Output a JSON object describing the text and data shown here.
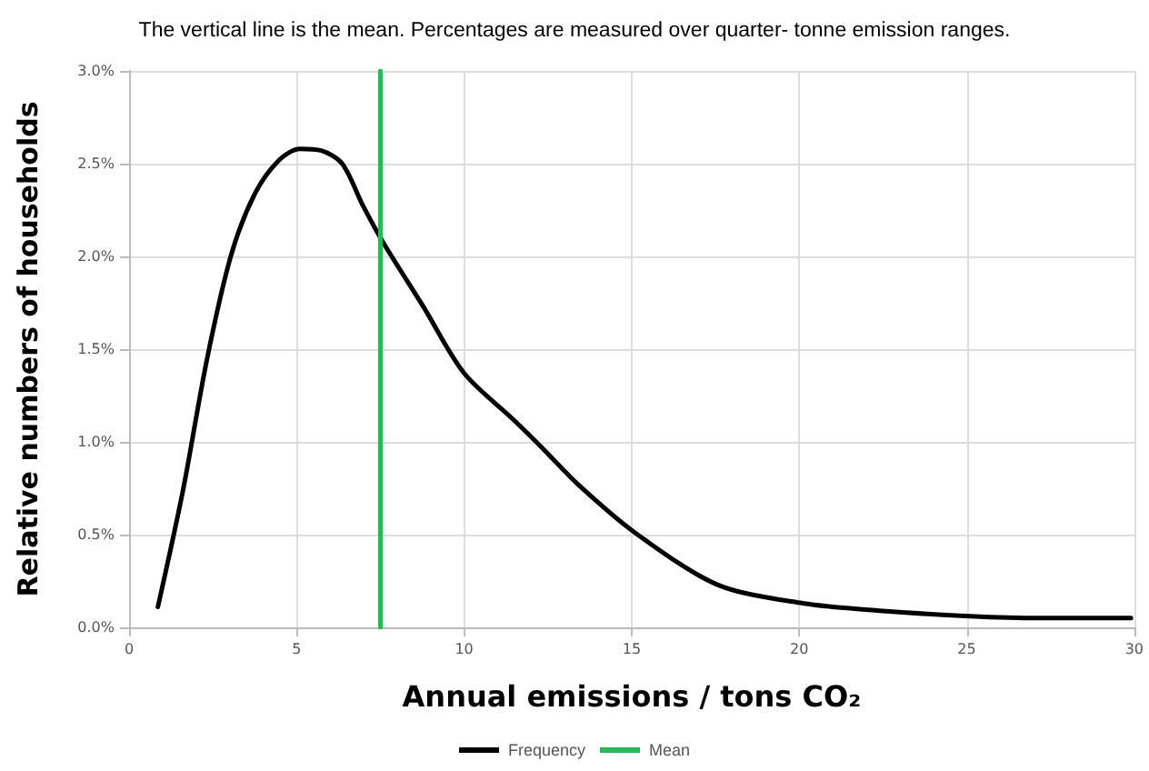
{
  "chart_data": {
    "type": "line",
    "title": "The vertical line is the mean. Percentages are measured over quarter- tonne emission ranges.",
    "xlabel": "Annual emissions / tons CO₂",
    "ylabel": "Relative numbers of households",
    "series": [
      {
        "name": "Frequency",
        "color": "#000000",
        "x": [
          0.86,
          1.6,
          2.33,
          3.05,
          3.76,
          4.48,
          5.1,
          5.74,
          6.36,
          6.99,
          7.6,
          8.78,
          10.0,
          11.47,
          12.37,
          13.4,
          15.1,
          17.56,
          20.1,
          22.4,
          25.1,
          27.2,
          29.9
        ],
        "values": [
          0.11,
          0.73,
          1.45,
          2.01,
          2.34,
          2.52,
          2.58,
          2.57,
          2.5,
          2.27,
          2.07,
          1.73,
          1.37,
          1.12,
          0.96,
          0.77,
          0.51,
          0.23,
          0.13,
          0.09,
          0.06,
          0.05,
          0.05
        ]
      },
      {
        "name": "Mean",
        "color": "#22bb55",
        "x": [
          7.5,
          7.5
        ],
        "values": [
          0,
          3
        ]
      }
    ],
    "xlim": [
      0,
      30
    ],
    "xticks": [
      0,
      5,
      10,
      15,
      20,
      25,
      30
    ],
    "ylim": [
      0,
      3
    ],
    "yticks": [
      {
        "value": 0,
        "label": "0.0%"
      },
      {
        "value": 0.5,
        "label": "0.5%"
      },
      {
        "value": 1,
        "label": "1.0%"
      },
      {
        "value": 1.5,
        "label": "1.5%"
      },
      {
        "value": 2,
        "label": "2.0%"
      },
      {
        "value": 2.5,
        "label": "2.5%"
      },
      {
        "value": 3,
        "label": "3.0%"
      }
    ],
    "grid": true,
    "legend": "bottom",
    "marker": "none",
    "line_style": "solid"
  }
}
